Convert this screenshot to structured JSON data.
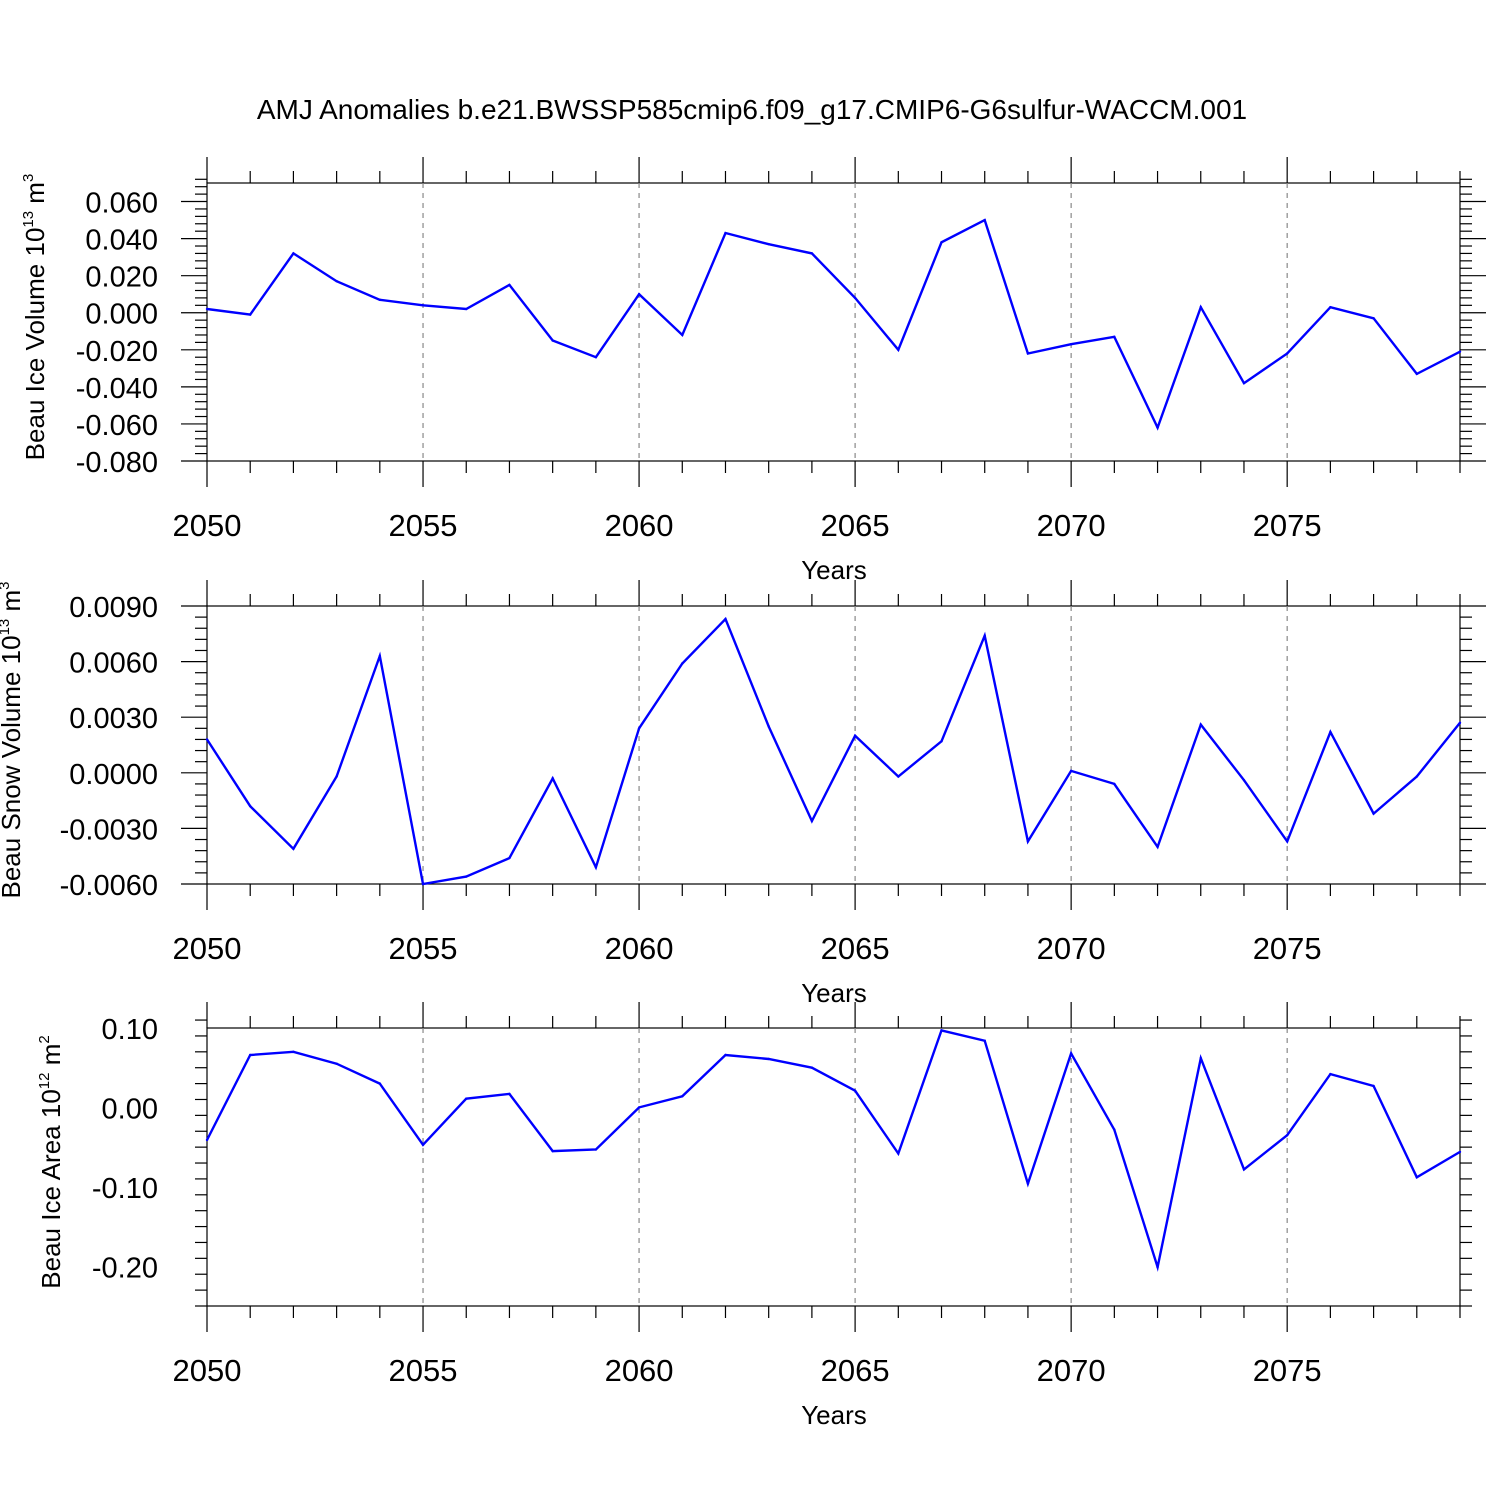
{
  "title": "AMJ Anomalies b.e21.BWSSP585cmip6.f09_g17.CMIP6-G6sulfur-WACCM.001",
  "colors": {
    "line": "#0000ff",
    "axis": "#000000",
    "grid": "#888888",
    "background": "#ffffff"
  },
  "chart_data": [
    {
      "type": "line",
      "name": "ice-volume",
      "ylabel": {
        "base": "Beau Ice Volume 10",
        "exp": "13",
        "unit": " m",
        "unit_exp": "3"
      },
      "xlabel": "Years",
      "xlim": [
        2050,
        2079
      ],
      "ylim": [
        -0.08,
        0.07
      ],
      "ytick_values": [
        0.06,
        0.04,
        0.02,
        0.0,
        -0.02,
        -0.04,
        -0.06,
        -0.08
      ],
      "ytick_labels": [
        "0.060",
        "0.040",
        "0.020",
        "0.000",
        "-0.020",
        "-0.040",
        "-0.060",
        "-0.080"
      ],
      "yminor_step": 0.004,
      "xtick_values": [
        2050,
        2055,
        2060,
        2065,
        2070,
        2075
      ],
      "xtick_labels": [
        "2050",
        "2055",
        "2060",
        "2065",
        "2070",
        "2075"
      ],
      "x": [
        2050,
        2051,
        2052,
        2053,
        2054,
        2055,
        2056,
        2057,
        2058,
        2059,
        2060,
        2061,
        2062,
        2063,
        2064,
        2065,
        2066,
        2067,
        2068,
        2069,
        2070,
        2071,
        2072,
        2073,
        2074,
        2075,
        2076,
        2077,
        2078,
        2079
      ],
      "values": [
        0.002,
        -0.001,
        0.032,
        0.017,
        0.007,
        0.004,
        0.002,
        0.015,
        -0.015,
        -0.024,
        0.01,
        -0.012,
        0.043,
        0.037,
        0.032,
        0.008,
        -0.02,
        0.038,
        0.05,
        -0.022,
        -0.017,
        -0.013,
        -0.062,
        0.003,
        -0.038,
        -0.022,
        0.003,
        -0.003,
        -0.033,
        -0.021
      ]
    },
    {
      "type": "line",
      "name": "snow-volume",
      "ylabel": {
        "base": "Beau Snow Volume 10",
        "exp": "13",
        "unit": " m",
        "unit_exp": "3"
      },
      "xlabel": "Years",
      "xlim": [
        2050,
        2079
      ],
      "ylim": [
        -0.006,
        0.009
      ],
      "ytick_values": [
        0.009,
        0.006,
        0.003,
        0.0,
        -0.003,
        -0.006
      ],
      "ytick_labels": [
        "0.0090",
        "0.0060",
        "0.0030",
        "0.0000",
        "-0.0030",
        "-0.0060"
      ],
      "yminor_step": 0.0006,
      "xtick_values": [
        2050,
        2055,
        2060,
        2065,
        2070,
        2075
      ],
      "xtick_labels": [
        "2050",
        "2055",
        "2060",
        "2065",
        "2070",
        "2075"
      ],
      "x": [
        2050,
        2051,
        2052,
        2053,
        2054,
        2055,
        2056,
        2057,
        2058,
        2059,
        2060,
        2061,
        2062,
        2063,
        2064,
        2065,
        2066,
        2067,
        2068,
        2069,
        2070,
        2071,
        2072,
        2073,
        2074,
        2075,
        2076,
        2077,
        2078,
        2079
      ],
      "values": [
        0.0018,
        -0.0018,
        -0.0041,
        -0.0002,
        0.0063,
        -0.006,
        -0.0056,
        -0.0046,
        -0.0003,
        -0.0051,
        0.0024,
        0.0059,
        0.0083,
        0.0025,
        -0.0026,
        0.002,
        -0.0002,
        0.0017,
        0.0074,
        -0.0037,
        0.0001,
        -0.0006,
        -0.004,
        0.0026,
        -0.0004,
        -0.0037,
        0.0022,
        -0.0022,
        -0.0002,
        0.0027
      ]
    },
    {
      "type": "line",
      "name": "ice-area",
      "ylabel": {
        "base": "Beau Ice Area 10",
        "exp": "12",
        "unit": " m",
        "unit_exp": "2"
      },
      "xlabel": "Years",
      "xlim": [
        2050,
        2079
      ],
      "ylim": [
        -0.25,
        0.1
      ],
      "ytick_values": [
        0.1,
        0.0,
        -0.1,
        -0.2
      ],
      "ytick_labels": [
        "0.10",
        "0.00",
        "-0.10",
        "-0.20"
      ],
      "yminor_step": 0.02,
      "xtick_values": [
        2050,
        2055,
        2060,
        2065,
        2070,
        2075
      ],
      "xtick_labels": [
        "2050",
        "2055",
        "2060",
        "2065",
        "2070",
        "2075"
      ],
      "x": [
        2050,
        2051,
        2052,
        2053,
        2054,
        2055,
        2056,
        2057,
        2058,
        2059,
        2060,
        2061,
        2062,
        2063,
        2064,
        2065,
        2066,
        2067,
        2068,
        2069,
        2070,
        2071,
        2072,
        2073,
        2074,
        2075,
        2076,
        2077,
        2078,
        2079
      ],
      "values": [
        -0.041,
        0.066,
        0.07,
        0.055,
        0.03,
        -0.047,
        0.011,
        0.017,
        -0.055,
        -0.053,
        0.0,
        0.014,
        0.066,
        0.061,
        0.05,
        0.021,
        -0.058,
        0.097,
        0.084,
        -0.096,
        0.068,
        -0.028,
        -0.201,
        0.062,
        -0.078,
        -0.035,
        0.042,
        0.027,
        -0.088,
        -0.056
      ]
    }
  ]
}
